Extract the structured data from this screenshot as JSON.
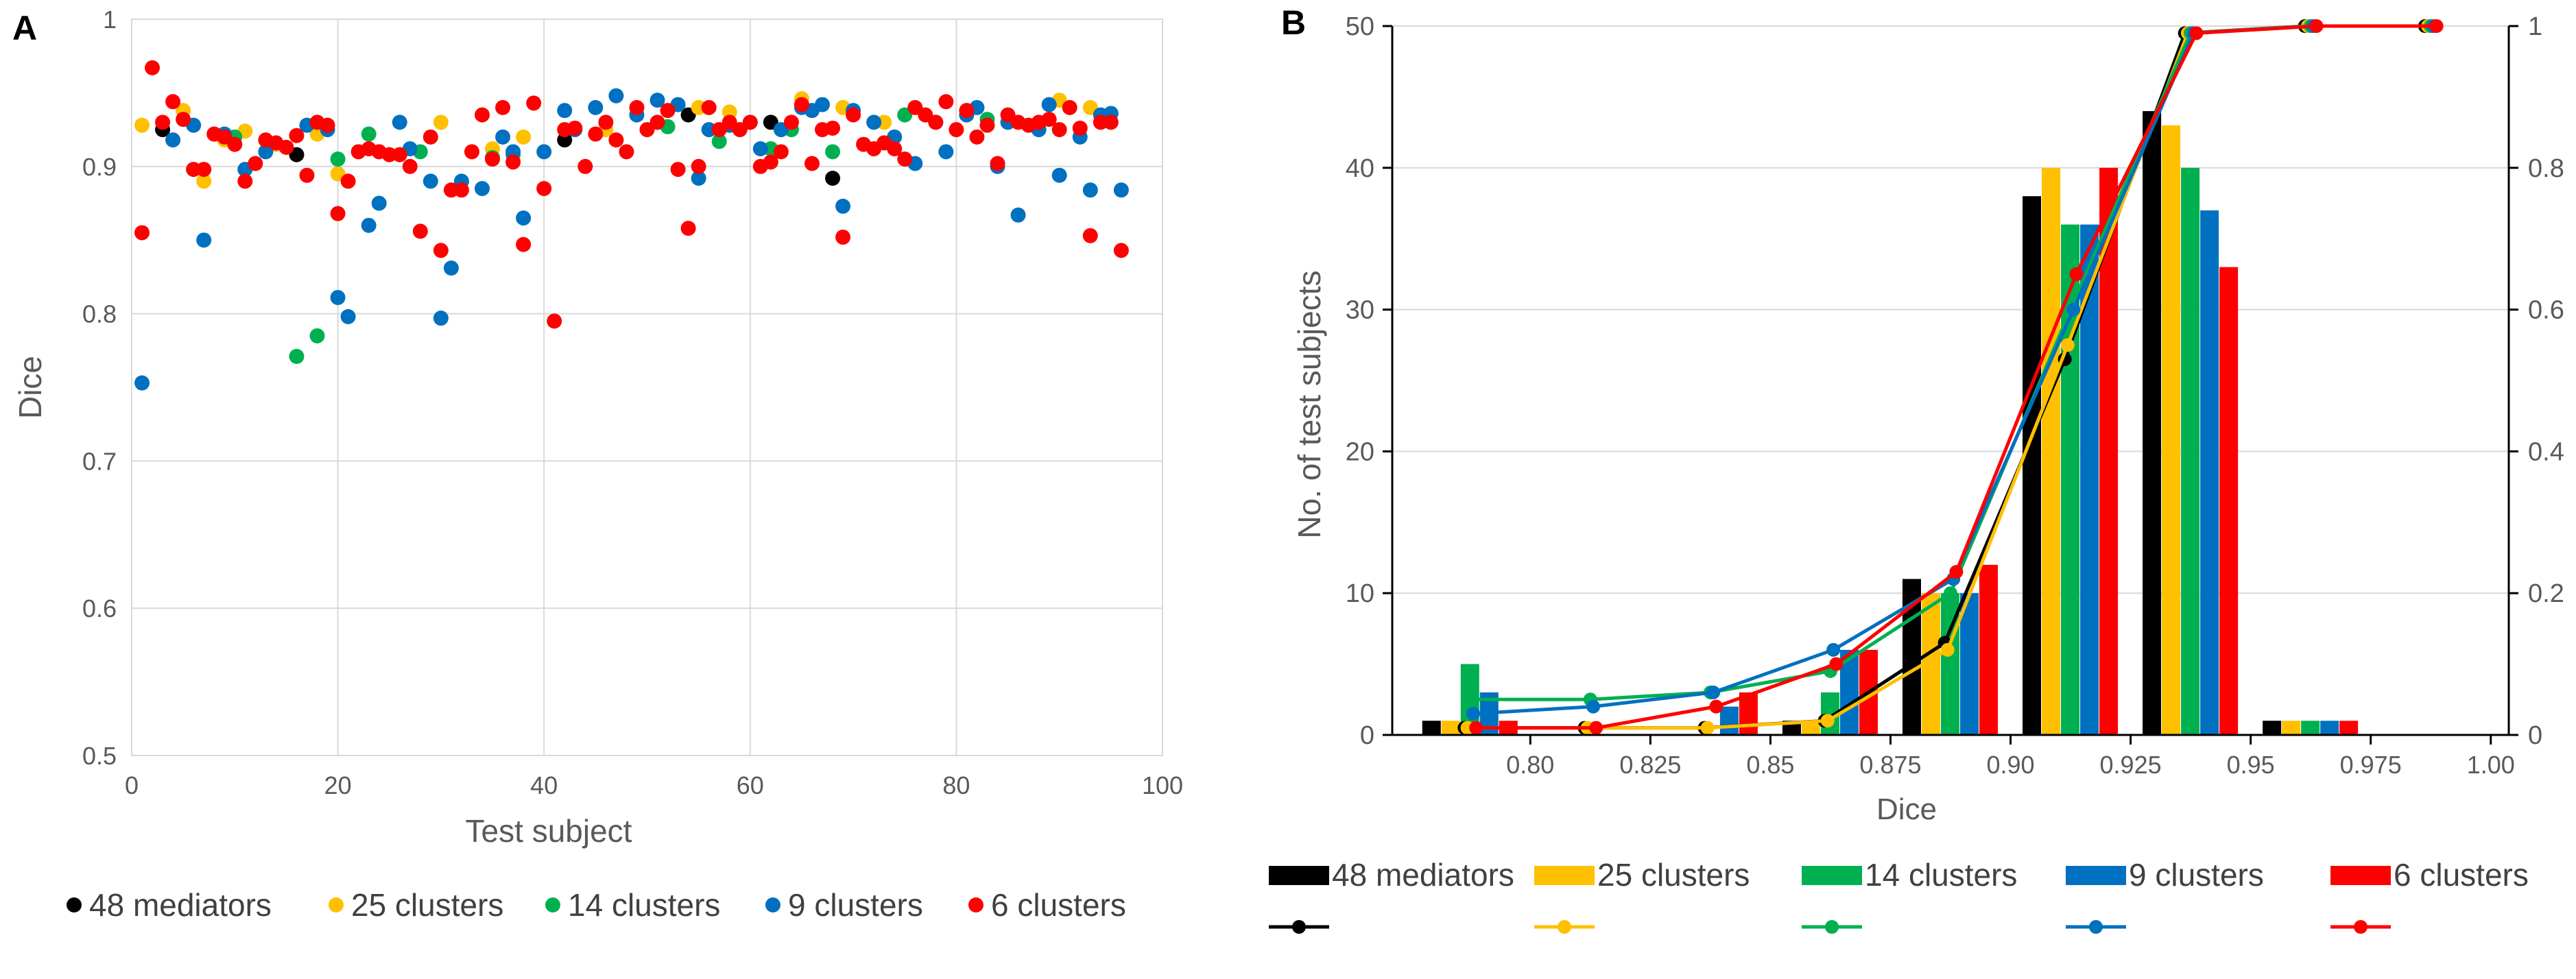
{
  "panel_a": {
    "label": "A",
    "legend": [
      "48 mediators",
      "25 clusters",
      "14 clusters",
      "9 clusters",
      "6 clusters"
    ]
  },
  "panel_b": {
    "label": "B",
    "legend_bars": [
      "48 mediators",
      "25 clusters",
      "14 clusters",
      "9 clusters",
      "6 clusters"
    ]
  },
  "chart_data": [
    {
      "type": "scatter",
      "title": "",
      "xlabel": "Test subject",
      "ylabel": "Dice",
      "xlim": [
        0,
        100
      ],
      "ylim": [
        0.5,
        1
      ],
      "xticks": [
        0,
        20,
        40,
        60,
        80,
        100
      ],
      "yticks": [
        0.5,
        0.6,
        0.7,
        0.8,
        0.9,
        1
      ],
      "ytick_labels": [
        "0.5",
        "0.6",
        "0.7",
        "0.8",
        "0.9",
        "1"
      ],
      "grid": true,
      "legend_position": "bottom",
      "series": [
        {
          "name": "48 mediators",
          "color": "#000000",
          "x": [
            3,
            16,
            42,
            54,
            62,
            68
          ],
          "y": [
            0.925,
            0.908,
            0.918,
            0.935,
            0.93,
            0.892
          ]
        },
        {
          "name": "25 clusters",
          "color": "#FFC000",
          "x": [
            1,
            5,
            7,
            9,
            11,
            14,
            18,
            20,
            30,
            35,
            38,
            46,
            55,
            58,
            65,
            69,
            73,
            81,
            90,
            93
          ],
          "y": [
            0.928,
            0.938,
            0.89,
            0.918,
            0.924,
            0.915,
            0.922,
            0.895,
            0.93,
            0.912,
            0.92,
            0.925,
            0.94,
            0.937,
            0.946,
            0.94,
            0.93,
            0.935,
            0.945,
            0.94
          ]
        },
        {
          "name": "14 clusters",
          "color": "#00B050",
          "x": [
            10,
            16,
            18,
            20,
            23,
            28,
            35,
            37,
            52,
            57,
            62,
            64,
            68,
            75,
            83,
            88
          ],
          "y": [
            0.92,
            0.771,
            0.785,
            0.905,
            0.922,
            0.91,
            0.906,
            0.908,
            0.927,
            0.917,
            0.912,
            0.925,
            0.91,
            0.935,
            0.932,
            0.925
          ]
        },
        {
          "name": "9 clusters",
          "color": "#0070C0",
          "x": [
            1,
            4,
            6,
            7,
            9,
            11,
            13,
            17,
            19,
            20,
            21,
            23,
            24,
            26,
            27,
            29,
            30,
            31,
            32,
            34,
            36,
            37,
            38,
            40,
            42,
            43,
            45,
            47,
            49,
            51,
            53,
            55,
            56,
            58,
            60,
            61,
            63,
            65,
            66,
            67,
            69,
            70,
            72,
            74,
            76,
            78,
            79,
            81,
            82,
            84,
            85,
            86,
            88,
            89,
            90,
            92,
            93,
            94,
            95,
            96
          ],
          "y": [
            0.753,
            0.918,
            0.928,
            0.85,
            0.922,
            0.898,
            0.91,
            0.928,
            0.925,
            0.811,
            0.798,
            0.86,
            0.875,
            0.93,
            0.912,
            0.89,
            0.797,
            0.831,
            0.89,
            0.885,
            0.92,
            0.91,
            0.865,
            0.91,
            0.938,
            0.925,
            0.94,
            0.948,
            0.935,
            0.945,
            0.942,
            0.892,
            0.925,
            0.928,
            0.93,
            0.912,
            0.925,
            0.94,
            0.938,
            0.942,
            0.873,
            0.938,
            0.93,
            0.92,
            0.902,
            0.93,
            0.91,
            0.935,
            0.94,
            0.9,
            0.93,
            0.867,
            0.925,
            0.942,
            0.894,
            0.92,
            0.884,
            0.935,
            0.936,
            0.884
          ]
        },
        {
          "name": "6 clusters",
          "color": "#FF0000",
          "x": [
            1,
            2,
            3,
            4,
            5,
            6,
            7,
            8,
            9,
            10,
            11,
            12,
            13,
            14,
            15,
            16,
            17,
            18,
            19,
            20,
            21,
            22,
            23,
            24,
            25,
            26,
            27,
            28,
            29,
            30,
            31,
            32,
            33,
            34,
            35,
            36,
            37,
            38,
            39,
            40,
            41,
            42,
            43,
            44,
            45,
            46,
            47,
            48,
            49,
            50,
            51,
            52,
            53,
            54,
            55,
            56,
            57,
            58,
            59,
            60,
            61,
            62,
            63,
            64,
            65,
            66,
            67,
            68,
            69,
            70,
            71,
            72,
            73,
            74,
            75,
            76,
            77,
            78,
            79,
            80,
            81,
            82,
            83,
            84,
            85,
            86,
            87,
            88,
            89,
            90,
            91,
            92,
            93,
            94,
            95,
            96
          ],
          "y": [
            0.855,
            0.967,
            0.93,
            0.944,
            0.932,
            0.898,
            0.898,
            0.922,
            0.92,
            0.915,
            0.89,
            0.902,
            0.918,
            0.916,
            0.913,
            0.921,
            0.894,
            0.93,
            0.928,
            0.868,
            0.89,
            0.91,
            0.912,
            0.91,
            0.908,
            0.908,
            0.9,
            0.856,
            0.92,
            0.843,
            0.884,
            0.884,
            0.91,
            0.935,
            0.905,
            0.94,
            0.903,
            0.847,
            0.943,
            0.885,
            0.795,
            0.925,
            0.926,
            0.9,
            0.922,
            0.93,
            0.918,
            0.91,
            0.94,
            0.925,
            0.93,
            0.938,
            0.898,
            0.858,
            0.9,
            0.94,
            0.925,
            0.93,
            0.925,
            0.93,
            0.9,
            0.903,
            0.91,
            0.93,
            0.942,
            0.902,
            0.925,
            0.926,
            0.852,
            0.935,
            0.915,
            0.912,
            0.916,
            0.912,
            0.905,
            0.94,
            0.935,
            0.93,
            0.944,
            0.925,
            0.938,
            0.92,
            0.928,
            0.902,
            0.935,
            0.93,
            0.928,
            0.93,
            0.932,
            0.925,
            0.94,
            0.926,
            0.853,
            0.93,
            0.93,
            0.843
          ]
        }
      ]
    },
    {
      "type": "bar",
      "title": "",
      "xlabel": "Dice",
      "ylabel": "No. of test subjects",
      "categories": [
        "0.775-0.80",
        "0.80-0.825",
        "0.825-0.85",
        "0.85-0.875",
        "0.875-0.90",
        "0.90-0.925",
        "0.925-0.95",
        "0.95-0.975",
        "0.975-1.00"
      ],
      "xticks": [
        "0.80",
        "0.825",
        "0.85",
        "0.875",
        "0.90",
        "0.925",
        "0.95",
        "0.975",
        "1.00"
      ],
      "ylim": [
        0,
        50
      ],
      "yticks": [
        0,
        10,
        20,
        30,
        40,
        50
      ],
      "y2lim": [
        0,
        1
      ],
      "y2ticks": [
        "0",
        "0.2",
        "0.4",
        "0.6",
        "0.8",
        "1"
      ],
      "grid": true,
      "legend_position": "bottom",
      "series": [
        {
          "name": "48 mediators",
          "color": "#000000",
          "values": [
            1,
            0,
            0,
            1,
            11,
            38,
            44,
            1,
            0
          ],
          "cumulative": [
            0.01,
            0.01,
            0.01,
            0.02,
            0.13,
            0.53,
            0.99,
            1.0,
            1.0
          ]
        },
        {
          "name": "25 clusters",
          "color": "#FFC000",
          "values": [
            1,
            0,
            0,
            1,
            10,
            40,
            43,
            1,
            0
          ],
          "cumulative": [
            0.01,
            0.01,
            0.01,
            0.02,
            0.12,
            0.55,
            0.99,
            1.0,
            1.0
          ]
        },
        {
          "name": "14 clusters",
          "color": "#00B050",
          "values": [
            5,
            0,
            0,
            3,
            10,
            36,
            40,
            1,
            0
          ],
          "cumulative": [
            0.05,
            0.05,
            0.06,
            0.09,
            0.2,
            0.6,
            0.99,
            1.0,
            1.0
          ]
        },
        {
          "name": "9 clusters",
          "color": "#0070C0",
          "values": [
            3,
            0,
            2,
            6,
            10,
            36,
            37,
            1,
            0
          ],
          "cumulative": [
            0.03,
            0.04,
            0.06,
            0.12,
            0.22,
            0.6,
            0.99,
            1.0,
            1.0
          ]
        },
        {
          "name": "6 clusters",
          "color": "#FF0000",
          "values": [
            1,
            0,
            3,
            6,
            12,
            40,
            33,
            1,
            0
          ],
          "cumulative": [
            0.01,
            0.01,
            0.04,
            0.1,
            0.23,
            0.65,
            0.99,
            1.0,
            1.0
          ]
        }
      ]
    }
  ]
}
